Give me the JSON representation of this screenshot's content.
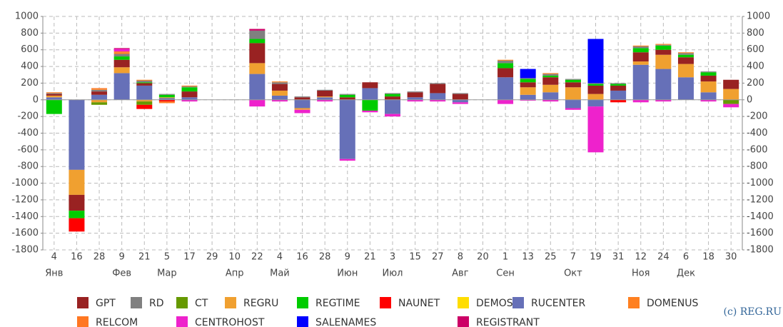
{
  "chart_data": {
    "type": "bar",
    "stacked": true,
    "categories": [
      "4",
      "16",
      "28",
      "9",
      "21",
      "5",
      "17",
      "29",
      "10",
      "22",
      "4",
      "16",
      "28",
      "9",
      "21",
      "3",
      "15",
      "27",
      "8",
      "20",
      "1",
      "13",
      "25",
      "7",
      "19",
      "31",
      "12",
      "24",
      "6",
      "18",
      "30"
    ],
    "month_labels": [
      "Янв",
      null,
      null,
      "Фев",
      null,
      "Мар",
      null,
      null,
      "Апр",
      null,
      "Май",
      null,
      null,
      "Июн",
      null,
      "Июл",
      null,
      null,
      "Авг",
      null,
      "Сен",
      null,
      null,
      "Окт",
      null,
      null,
      "Ноя",
      null,
      "Дек",
      null,
      null
    ],
    "ylim": [
      -1800,
      1000
    ],
    "yticks": [
      -1800,
      -1600,
      -1400,
      -1200,
      -1000,
      -800,
      -600,
      -400,
      -200,
      0,
      200,
      400,
      600,
      800,
      1000
    ],
    "grid": true,
    "credit": "(c) REG.RU",
    "series": [
      {
        "name": "GPT",
        "color": "#992222",
        "values": [
          20,
          -190,
          40,
          90,
          30,
          0,
          70,
          0,
          0,
          240,
          80,
          30,
          70,
          30,
          70,
          40,
          60,
          110,
          70,
          0,
          110,
          60,
          90,
          60,
          100,
          60,
          110,
          60,
          80,
          70,
          110
        ]
      },
      {
        "name": "RD",
        "color": "#808080",
        "values": [
          10,
          0,
          20,
          30,
          20,
          10,
          10,
          0,
          0,
          100,
          20,
          10,
          10,
          10,
          0,
          10,
          10,
          10,
          10,
          0,
          30,
          10,
          20,
          10,
          10,
          10,
          20,
          10,
          20,
          10,
          0
        ]
      },
      {
        "name": "CT",
        "color": "#669900",
        "values": [
          0,
          0,
          -30,
          0,
          -40,
          0,
          0,
          0,
          0,
          0,
          0,
          0,
          0,
          0,
          0,
          0,
          0,
          0,
          0,
          0,
          0,
          0,
          0,
          0,
          0,
          0,
          0,
          0,
          0,
          0,
          -50
        ]
      },
      {
        "name": "REGRU",
        "color": "#f0a030",
        "values": [
          20,
          -300,
          -30,
          70,
          -20,
          10,
          0,
          0,
          0,
          130,
          60,
          -20,
          10,
          0,
          0,
          0,
          0,
          0,
          0,
          0,
          0,
          90,
          90,
          150,
          70,
          0,
          40,
          170,
          160,
          130,
          130
        ]
      },
      {
        "name": "REGTIME",
        "color": "#00cc00",
        "values": [
          -170,
          -90,
          0,
          40,
          10,
          30,
          50,
          0,
          0,
          50,
          0,
          0,
          0,
          30,
          -130,
          30,
          0,
          0,
          0,
          0,
          60,
          40,
          20,
          30,
          20,
          20,
          50,
          50,
          30,
          40,
          0
        ]
      },
      {
        "name": "NAUNET",
        "color": "#ff0000",
        "values": [
          0,
          -160,
          0,
          0,
          -50,
          -20,
          0,
          0,
          0,
          0,
          0,
          0,
          0,
          0,
          0,
          0,
          0,
          0,
          0,
          0,
          0,
          0,
          0,
          0,
          0,
          -30,
          0,
          0,
          0,
          0,
          0
        ]
      },
      {
        "name": "DEMOS",
        "color": "#ffdd00",
        "values": [
          0,
          0,
          0,
          0,
          0,
          0,
          0,
          0,
          0,
          0,
          0,
          0,
          0,
          0,
          0,
          0,
          0,
          0,
          0,
          0,
          0,
          0,
          0,
          0,
          0,
          0,
          0,
          0,
          0,
          0,
          0
        ]
      },
      {
        "name": "RUCENTER",
        "color": "#6670b8",
        "values": [
          30,
          -840,
          60,
          320,
          170,
          20,
          30,
          0,
          0,
          310,
          50,
          -100,
          30,
          -710,
          140,
          -170,
          30,
          80,
          -30,
          0,
          270,
          60,
          90,
          -100,
          -80,
          110,
          420,
          370,
          270,
          90,
          0
        ]
      },
      {
        "name": "DOMENUS",
        "color": "#ff8020",
        "values": [
          10,
          0,
          10,
          20,
          10,
          0,
          10,
          0,
          0,
          0,
          10,
          0,
          0,
          0,
          0,
          0,
          0,
          0,
          0,
          0,
          10,
          0,
          10,
          0,
          0,
          0,
          10,
          10,
          10,
          0,
          0
        ]
      },
      {
        "name": "RELCOM",
        "color": "#ff7722",
        "values": [
          0,
          0,
          10,
          10,
          0,
          -20,
          0,
          0,
          0,
          0,
          0,
          0,
          0,
          0,
          0,
          0,
          0,
          0,
          0,
          0,
          0,
          0,
          0,
          0,
          0,
          0,
          0,
          0,
          0,
          0,
          0
        ]
      },
      {
        "name": "CENTROHOST",
        "color": "#ee22cc",
        "values": [
          0,
          0,
          0,
          30,
          0,
          0,
          -20,
          0,
          0,
          -80,
          -20,
          -40,
          -20,
          -20,
          -20,
          -30,
          -20,
          -20,
          -20,
          0,
          -50,
          -10,
          -20,
          -20,
          -550,
          0,
          -30,
          -20,
          0,
          -20,
          -40
        ]
      },
      {
        "name": "SALENAMES",
        "color": "#0000ff",
        "values": [
          0,
          0,
          0,
          0,
          0,
          0,
          0,
          0,
          0,
          0,
          0,
          0,
          0,
          0,
          0,
          0,
          0,
          0,
          0,
          0,
          0,
          110,
          0,
          0,
          530,
          0,
          0,
          0,
          0,
          0,
          0
        ]
      },
      {
        "name": "REGISTRANT",
        "color": "#cc0066",
        "values": [
          0,
          0,
          0,
          10,
          0,
          0,
          0,
          0,
          0,
          20,
          0,
          0,
          0,
          0,
          0,
          0,
          0,
          0,
          0,
          0,
          0,
          0,
          0,
          0,
          0,
          0,
          0,
          0,
          0,
          0,
          0
        ]
      }
    ]
  }
}
